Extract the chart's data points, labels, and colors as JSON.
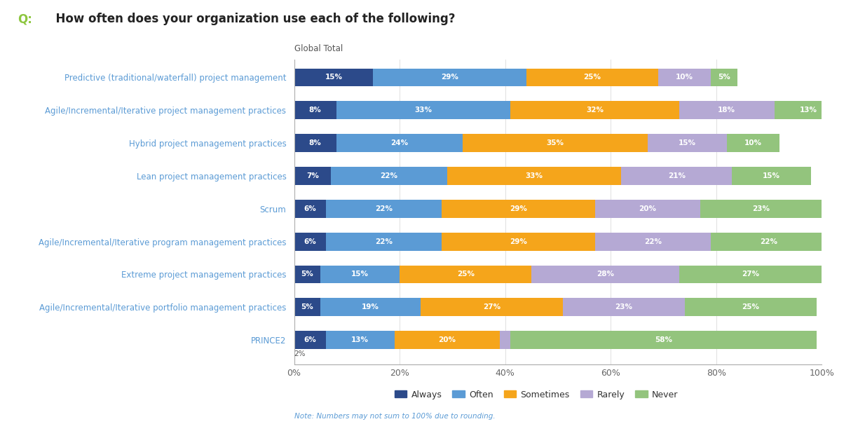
{
  "title_q": "Q:",
  "title_text": "  How often does your organization use each of the following?",
  "subtitle": "Global Total",
  "note": "Note: Numbers may not sum to 100% due to rounding.",
  "categories": [
    "Predictive (traditional/waterfall) project management",
    "Agile/Incremental/Iterative project management practices",
    "Hybrid project management practices",
    "Lean project management practices",
    "Scrum",
    "Agile/Incremental/Iterative program management practices",
    "Extreme project management practices",
    "Agile/Incremental/Iterative portfolio management practices",
    "PRINCE2"
  ],
  "series": {
    "Always": [
      15,
      8,
      8,
      7,
      6,
      6,
      5,
      5,
      6
    ],
    "Often": [
      29,
      33,
      24,
      22,
      22,
      22,
      15,
      19,
      13
    ],
    "Sometimes": [
      25,
      32,
      35,
      33,
      29,
      29,
      25,
      27,
      20
    ],
    "Rarely": [
      10,
      18,
      15,
      21,
      20,
      22,
      28,
      23,
      2
    ],
    "Never": [
      5,
      13,
      10,
      15,
      23,
      22,
      27,
      25,
      58
    ]
  },
  "colors": {
    "Always": "#2c4a8a",
    "Often": "#5b9bd5",
    "Sometimes": "#f5a51b",
    "Rarely": "#b5a9d4",
    "Never": "#93c47d"
  },
  "legend_order": [
    "Always",
    "Often",
    "Sometimes",
    "Rarely",
    "Never"
  ],
  "background_color": "#ffffff",
  "q_color": "#8dc63f",
  "title_color": "#222222",
  "label_color": "#5b9bd5",
  "note_color": "#5b9bd5",
  "subtitle_color": "#555555",
  "bar_text_color": "#ffffff",
  "bar_height": 0.55,
  "figsize": [
    12.34,
    6.05
  ],
  "dpi": 100
}
